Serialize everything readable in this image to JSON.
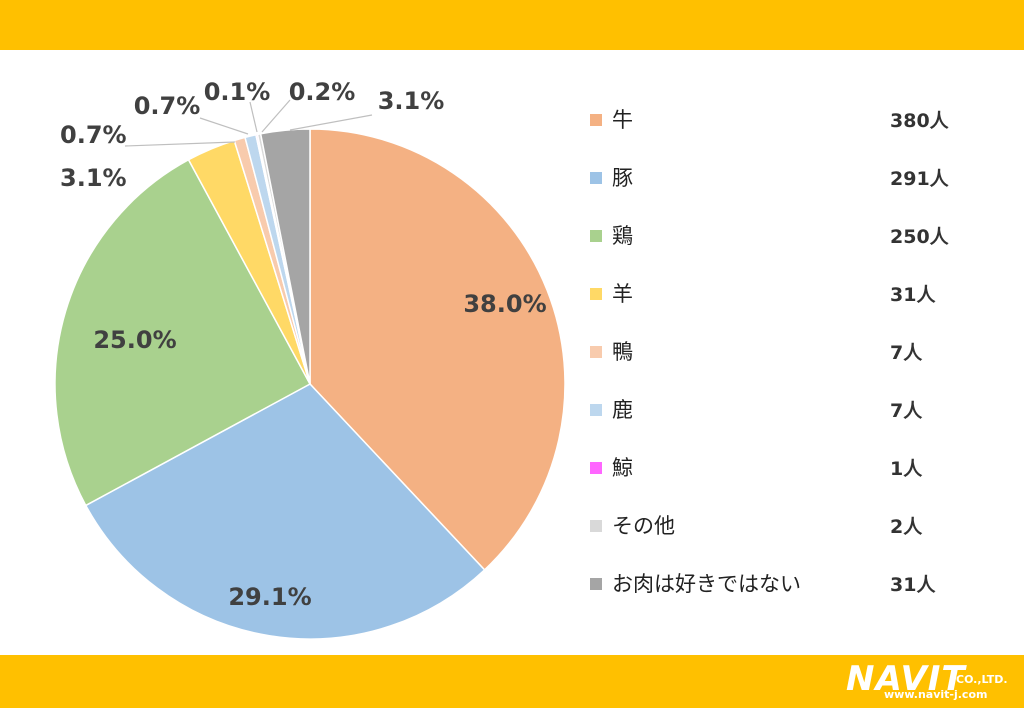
{
  "colors": {
    "banner": "#FFC000"
  },
  "chart_data": {
    "type": "pie",
    "slices": [
      {
        "name": "牛",
        "value": 380,
        "count_label": "380人",
        "percent_label": "38.0%",
        "color": "#F4B183"
      },
      {
        "name": "豚",
        "value": 291,
        "count_label": "291人",
        "percent_label": "29.1%",
        "color": "#9DC3E6"
      },
      {
        "name": "鶏",
        "value": 250,
        "count_label": "250人",
        "percent_label": "25.0%",
        "color": "#A9D18E"
      },
      {
        "name": "羊",
        "value": 31,
        "count_label": "31人",
        "percent_label": "3.1%",
        "color": "#FFD966"
      },
      {
        "name": "鴨",
        "value": 7,
        "count_label": "7人",
        "percent_label": "0.7%",
        "color": "#F8CBAD"
      },
      {
        "name": "鹿",
        "value": 7,
        "count_label": "7人",
        "percent_label": "0.7%",
        "color": "#BDD7EE"
      },
      {
        "name": "鯨",
        "value": 1,
        "count_label": "1人",
        "percent_label": "0.1%",
        "color": "#FF66FF"
      },
      {
        "name": "その他",
        "value": 2,
        "count_label": "2人",
        "percent_label": "0.2%",
        "color": "#D9D9D9"
      },
      {
        "name": "お肉は好きではない",
        "value": 31,
        "count_label": "31人",
        "percent_label": "3.1%",
        "color": "#A5A5A5"
      }
    ],
    "legend_position": "right"
  },
  "logo": {
    "name": "NAVIT",
    "suffix": "CO.,LTD.",
    "url": "www.navit-j.com"
  }
}
